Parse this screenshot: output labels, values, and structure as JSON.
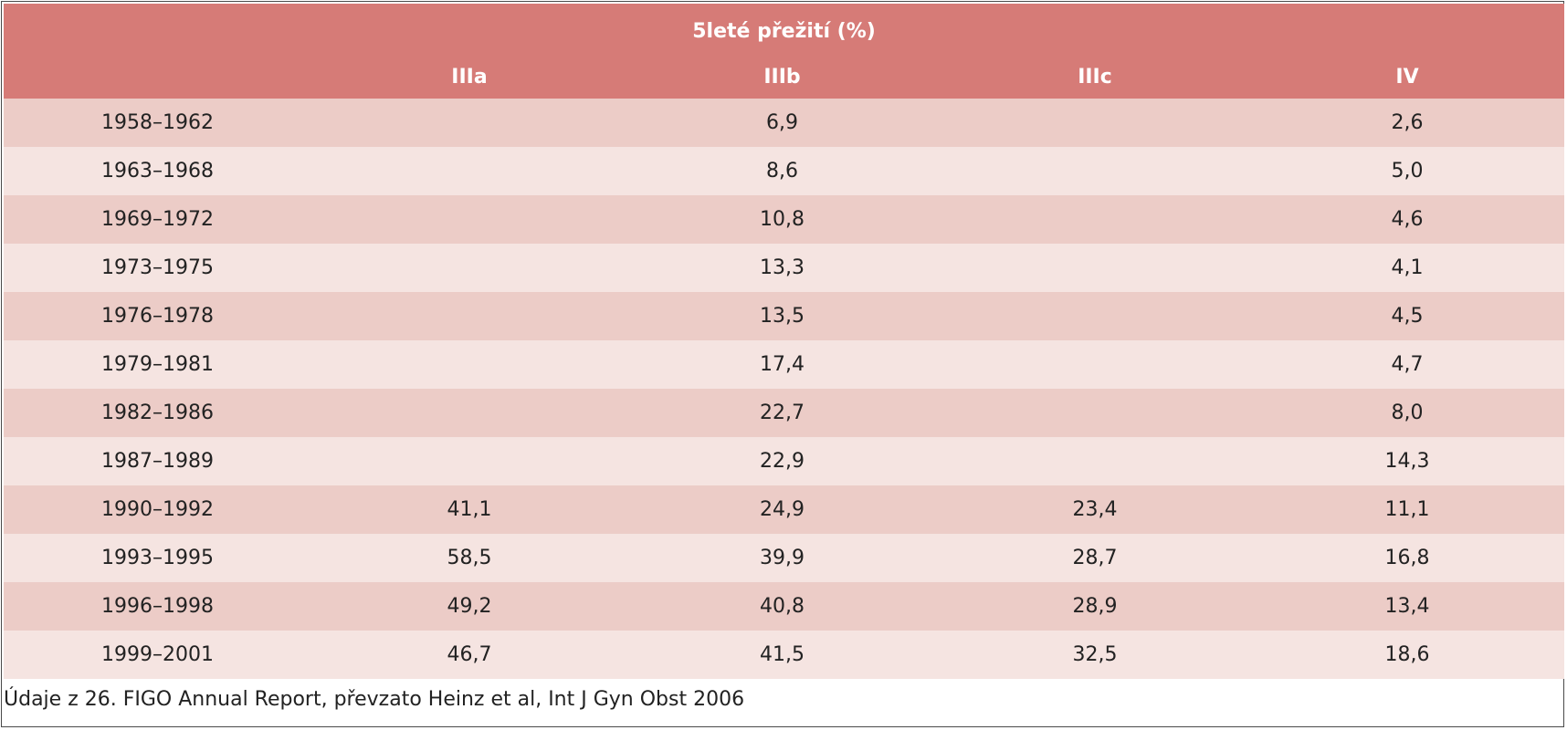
{
  "table": {
    "title": "5leté přežití (%)",
    "columns": [
      "",
      "IIIa",
      "IIIb",
      "IIIc",
      "IV"
    ],
    "rows": [
      {
        "period": "1958–1962",
        "IIIa": "",
        "IIIb": "6,9",
        "IIIc": "",
        "IV": "2,6"
      },
      {
        "period": "1963–1968",
        "IIIa": "",
        "IIIb": "8,6",
        "IIIc": "",
        "IV": "5,0"
      },
      {
        "period": "1969–1972",
        "IIIa": "",
        "IIIb": "10,8",
        "IIIc": "",
        "IV": "4,6"
      },
      {
        "period": "1973–1975",
        "IIIa": "",
        "IIIb": "13,3",
        "IIIc": "",
        "IV": "4,1"
      },
      {
        "period": "1976–1978",
        "IIIa": "",
        "IIIb": "13,5",
        "IIIc": "",
        "IV": "4,5"
      },
      {
        "period": "1979–1981",
        "IIIa": "",
        "IIIb": "17,4",
        "IIIc": "",
        "IV": "4,7"
      },
      {
        "period": "1982–1986",
        "IIIa": "",
        "IIIb": "22,7",
        "IIIc": "",
        "IV": "8,0"
      },
      {
        "period": "1987–1989",
        "IIIa": "",
        "IIIb": "22,9",
        "IIIc": "",
        "IV": "14,3"
      },
      {
        "period": "1990–1992",
        "IIIa": "41,1",
        "IIIb": "24,9",
        "IIIc": "23,4",
        "IV": "11,1"
      },
      {
        "period": "1993–1995",
        "IIIa": "58,5",
        "IIIb": "39,9",
        "IIIc": "28,7",
        "IV": "16,8"
      },
      {
        "period": "1996–1998",
        "IIIa": "49,2",
        "IIIb": "40,8",
        "IIIc": "28,9",
        "IV": "13,4"
      },
      {
        "period": "1999–2001",
        "IIIa": "46,7",
        "IIIb": "41,5",
        "IIIc": "32,5",
        "IV": "18,6"
      }
    ]
  },
  "caption": "Údaje z 26. FIGO Annual Report, převzato Heinz et al, Int J Gyn Obst 2006",
  "colors": {
    "header_bg": "#d67b77",
    "header_text": "#ffffff",
    "row_odd": "#ecccc7",
    "row_even": "#f5e4e1"
  }
}
